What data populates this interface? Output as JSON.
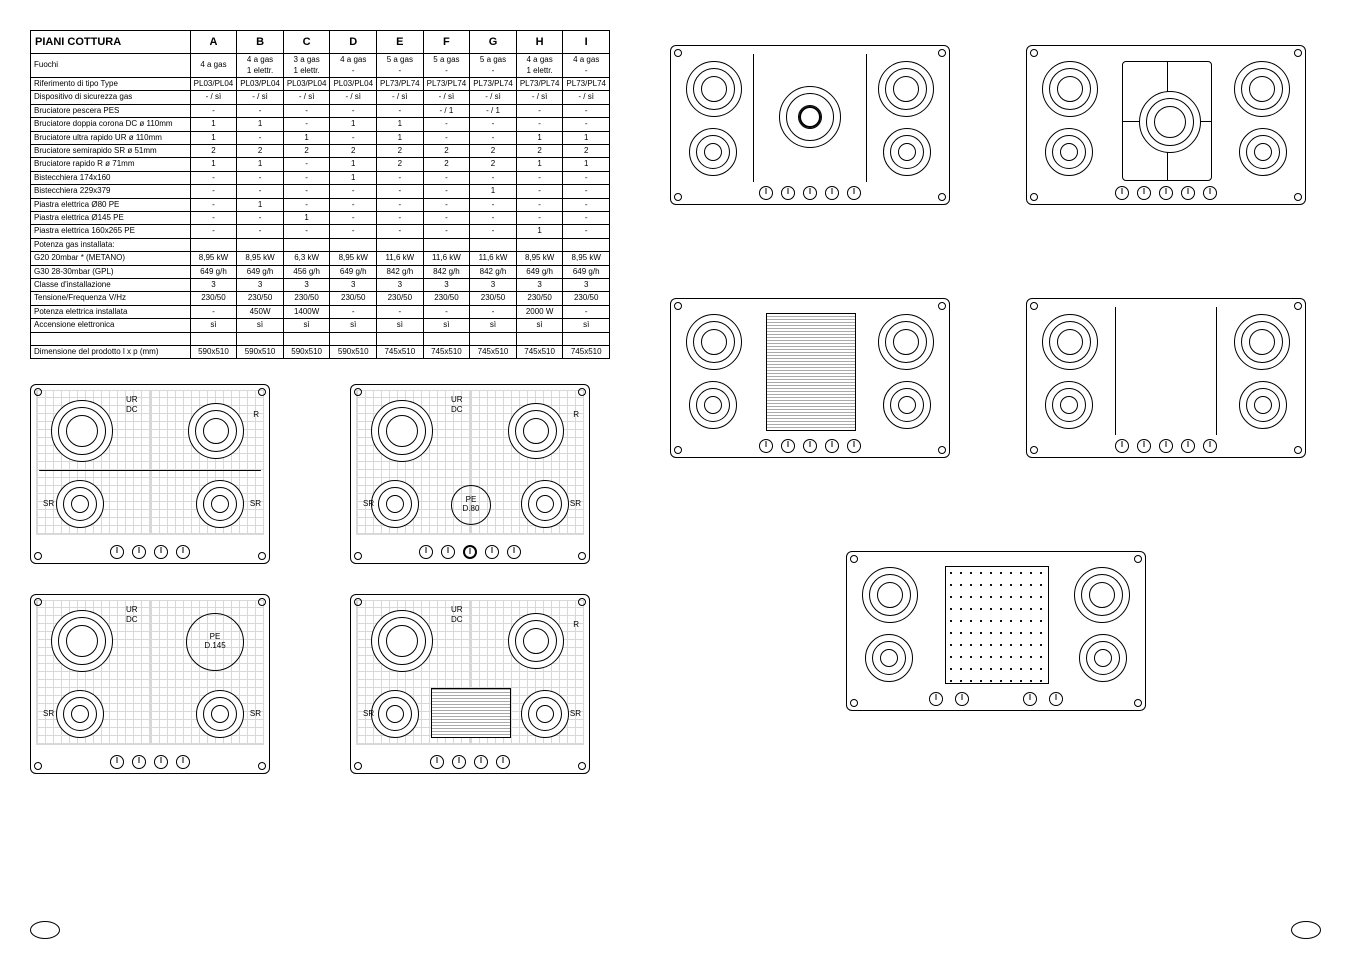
{
  "table": {
    "title": "PIANI COTTURA",
    "columns": [
      "A",
      "B",
      "C",
      "D",
      "E",
      "F",
      "G",
      "H",
      "I"
    ],
    "rows": [
      {
        "label": "Fuochi",
        "cells": [
          "4 a gas",
          "4 a gas\n1 elettr.",
          "3 a gas\n1 elettr.",
          "4 a gas\n-",
          "5 a gas\n-",
          "5 a gas\n-",
          "5 a gas\n-",
          "4 a gas\n1 elettr.",
          "4 a gas\n-"
        ]
      },
      {
        "label": "Riferimento di tipo        Type",
        "cells": [
          "PL03/PL04",
          "PL03/PL04",
          "PL03/PL04",
          "PL03/PL04",
          "PL73/PL74",
          "PL73/PL74",
          "PL73/PL74",
          "PL73/PL74",
          "PL73/PL74"
        ]
      },
      {
        "label": "Dispositivo di sicurezza gas",
        "cells": [
          "- / sì",
          "- / sì",
          "- / sì",
          "- / sì",
          "- / sì",
          "- / sì",
          "- / sì",
          "- / sì",
          "- / sì"
        ]
      },
      {
        "label": "Bruciatore pescera    PES",
        "cells": [
          "-",
          "-",
          "-",
          "-",
          "-",
          "- / 1",
          "- / 1",
          "-",
          "-"
        ]
      },
      {
        "label": "Bruciatore doppia corona    DC ø 110mm",
        "cells": [
          "1",
          "1",
          "-",
          "1",
          "1",
          "-",
          "-",
          "-",
          "-"
        ]
      },
      {
        "label": "Bruciatore ultra rapido    UR ø 110mm",
        "cells": [
          "1",
          "-",
          "1",
          "-",
          "1",
          "-",
          "-",
          "1",
          "1"
        ]
      },
      {
        "label": "Bruciatore semirapido    SR ø 51mm",
        "cells": [
          "2",
          "2",
          "2",
          "2",
          "2",
          "2",
          "2",
          "2",
          "2"
        ]
      },
      {
        "label": "Bruciatore rapido    R  ø 71mm",
        "cells": [
          "1",
          "1",
          "-",
          "1",
          "2",
          "2",
          "2",
          "1",
          "1"
        ]
      },
      {
        "label": "Bistecchiera 174x160",
        "cells": [
          "-",
          "-",
          "-",
          "1",
          "-",
          "-",
          "-",
          "-",
          "-"
        ]
      },
      {
        "label": "Bistecchiera 229x379",
        "cells": [
          "-",
          "-",
          "-",
          "-",
          "-",
          "-",
          "1",
          "-",
          "-"
        ]
      },
      {
        "label": "Piastra elettrica    Ø80          PE",
        "cells": [
          "-",
          "1",
          "-",
          "-",
          "-",
          "-",
          "-",
          "-",
          "-"
        ]
      },
      {
        "label": "Piastra elettrica    Ø145         PE",
        "cells": [
          "-",
          "-",
          "1",
          "-",
          "-",
          "-",
          "-",
          "-",
          "-"
        ]
      },
      {
        "label": "Piastra elettrica    160x265    PE",
        "cells": [
          "-",
          "-",
          "-",
          "-",
          "-",
          "-",
          "-",
          "1",
          "-"
        ]
      },
      {
        "label": "Potenza gas installata:",
        "cells": [
          "",
          "",
          "",
          "",
          "",
          "",
          "",
          "",
          ""
        ]
      },
      {
        "label": "G20 20mbar *        (METANO)",
        "cells": [
          "8,95 kW",
          "8,95 kW",
          "6,3 kW",
          "8,95 kW",
          "11,6 kW",
          "11,6 kW",
          "11,6 kW",
          "8,95 kW",
          "8,95 kW"
        ]
      },
      {
        "label": "G30 28-30mbar        (GPL)",
        "cells": [
          "649 g/h",
          "649 g/h",
          "456 g/h",
          "649 g/h",
          "842 g/h",
          "842 g/h",
          "842 g/h",
          "649 g/h",
          "649 g/h"
        ]
      },
      {
        "label": "Classe d'installazione",
        "cells": [
          "3",
          "3",
          "3",
          "3",
          "3",
          "3",
          "3",
          "3",
          "3"
        ]
      },
      {
        "label": "Tensione/Frequenza    V/Hz",
        "cells": [
          "230/50",
          "230/50",
          "230/50",
          "230/50",
          "230/50",
          "230/50",
          "230/50",
          "230/50",
          "230/50"
        ]
      },
      {
        "label": "Potenza elettrica installata",
        "cells": [
          "-",
          "450W",
          "1400W",
          "-",
          "-",
          "-",
          "-",
          "2000 W",
          "-"
        ]
      },
      {
        "label": "Accensione elettronica",
        "cells": [
          "sì",
          "sì",
          "sì",
          "sì",
          "sì",
          "sì",
          "sì",
          "sì",
          "sì"
        ]
      },
      {
        "label": "",
        "cells": [
          "",
          "",
          "",
          "",
          "",
          "",
          "",
          "",
          ""
        ]
      },
      {
        "label": "Dimensione del prodotto  l x p (mm)",
        "cells": [
          "590x510",
          "590x510",
          "590x510",
          "590x510",
          "745x510",
          "745x510",
          "745x510",
          "745x510",
          "745x510"
        ]
      }
    ]
  },
  "diagrams_left": [
    {
      "labels": [
        "UR",
        "DC",
        "R",
        "SR",
        "SR"
      ],
      "plate": null,
      "griddle": false,
      "layout": "4b"
    },
    {
      "labels": [
        "UR",
        "DC",
        "R",
        "SR",
        "SR"
      ],
      "plate": "PE\nD.80",
      "griddle": false,
      "layout": "5b"
    },
    {
      "labels": [
        "UR",
        "DC",
        "SR",
        "SR"
      ],
      "plate": "PE\nD.145",
      "griddle": false,
      "layout": "3b+plate"
    },
    {
      "labels": [
        "UR",
        "DC",
        "R",
        "SR",
        "SR"
      ],
      "plate": null,
      "griddle": true,
      "layout": "4b+griddle"
    }
  ],
  "diagrams_right": [
    {
      "type": "wide",
      "center": "burner"
    },
    {
      "type": "wide",
      "center": "cross"
    },
    {
      "type": "wide",
      "center": "griddle-tall"
    },
    {
      "type": "wide",
      "center": "none"
    },
    {
      "type": "xwide",
      "center": "dotgrid"
    }
  ]
}
